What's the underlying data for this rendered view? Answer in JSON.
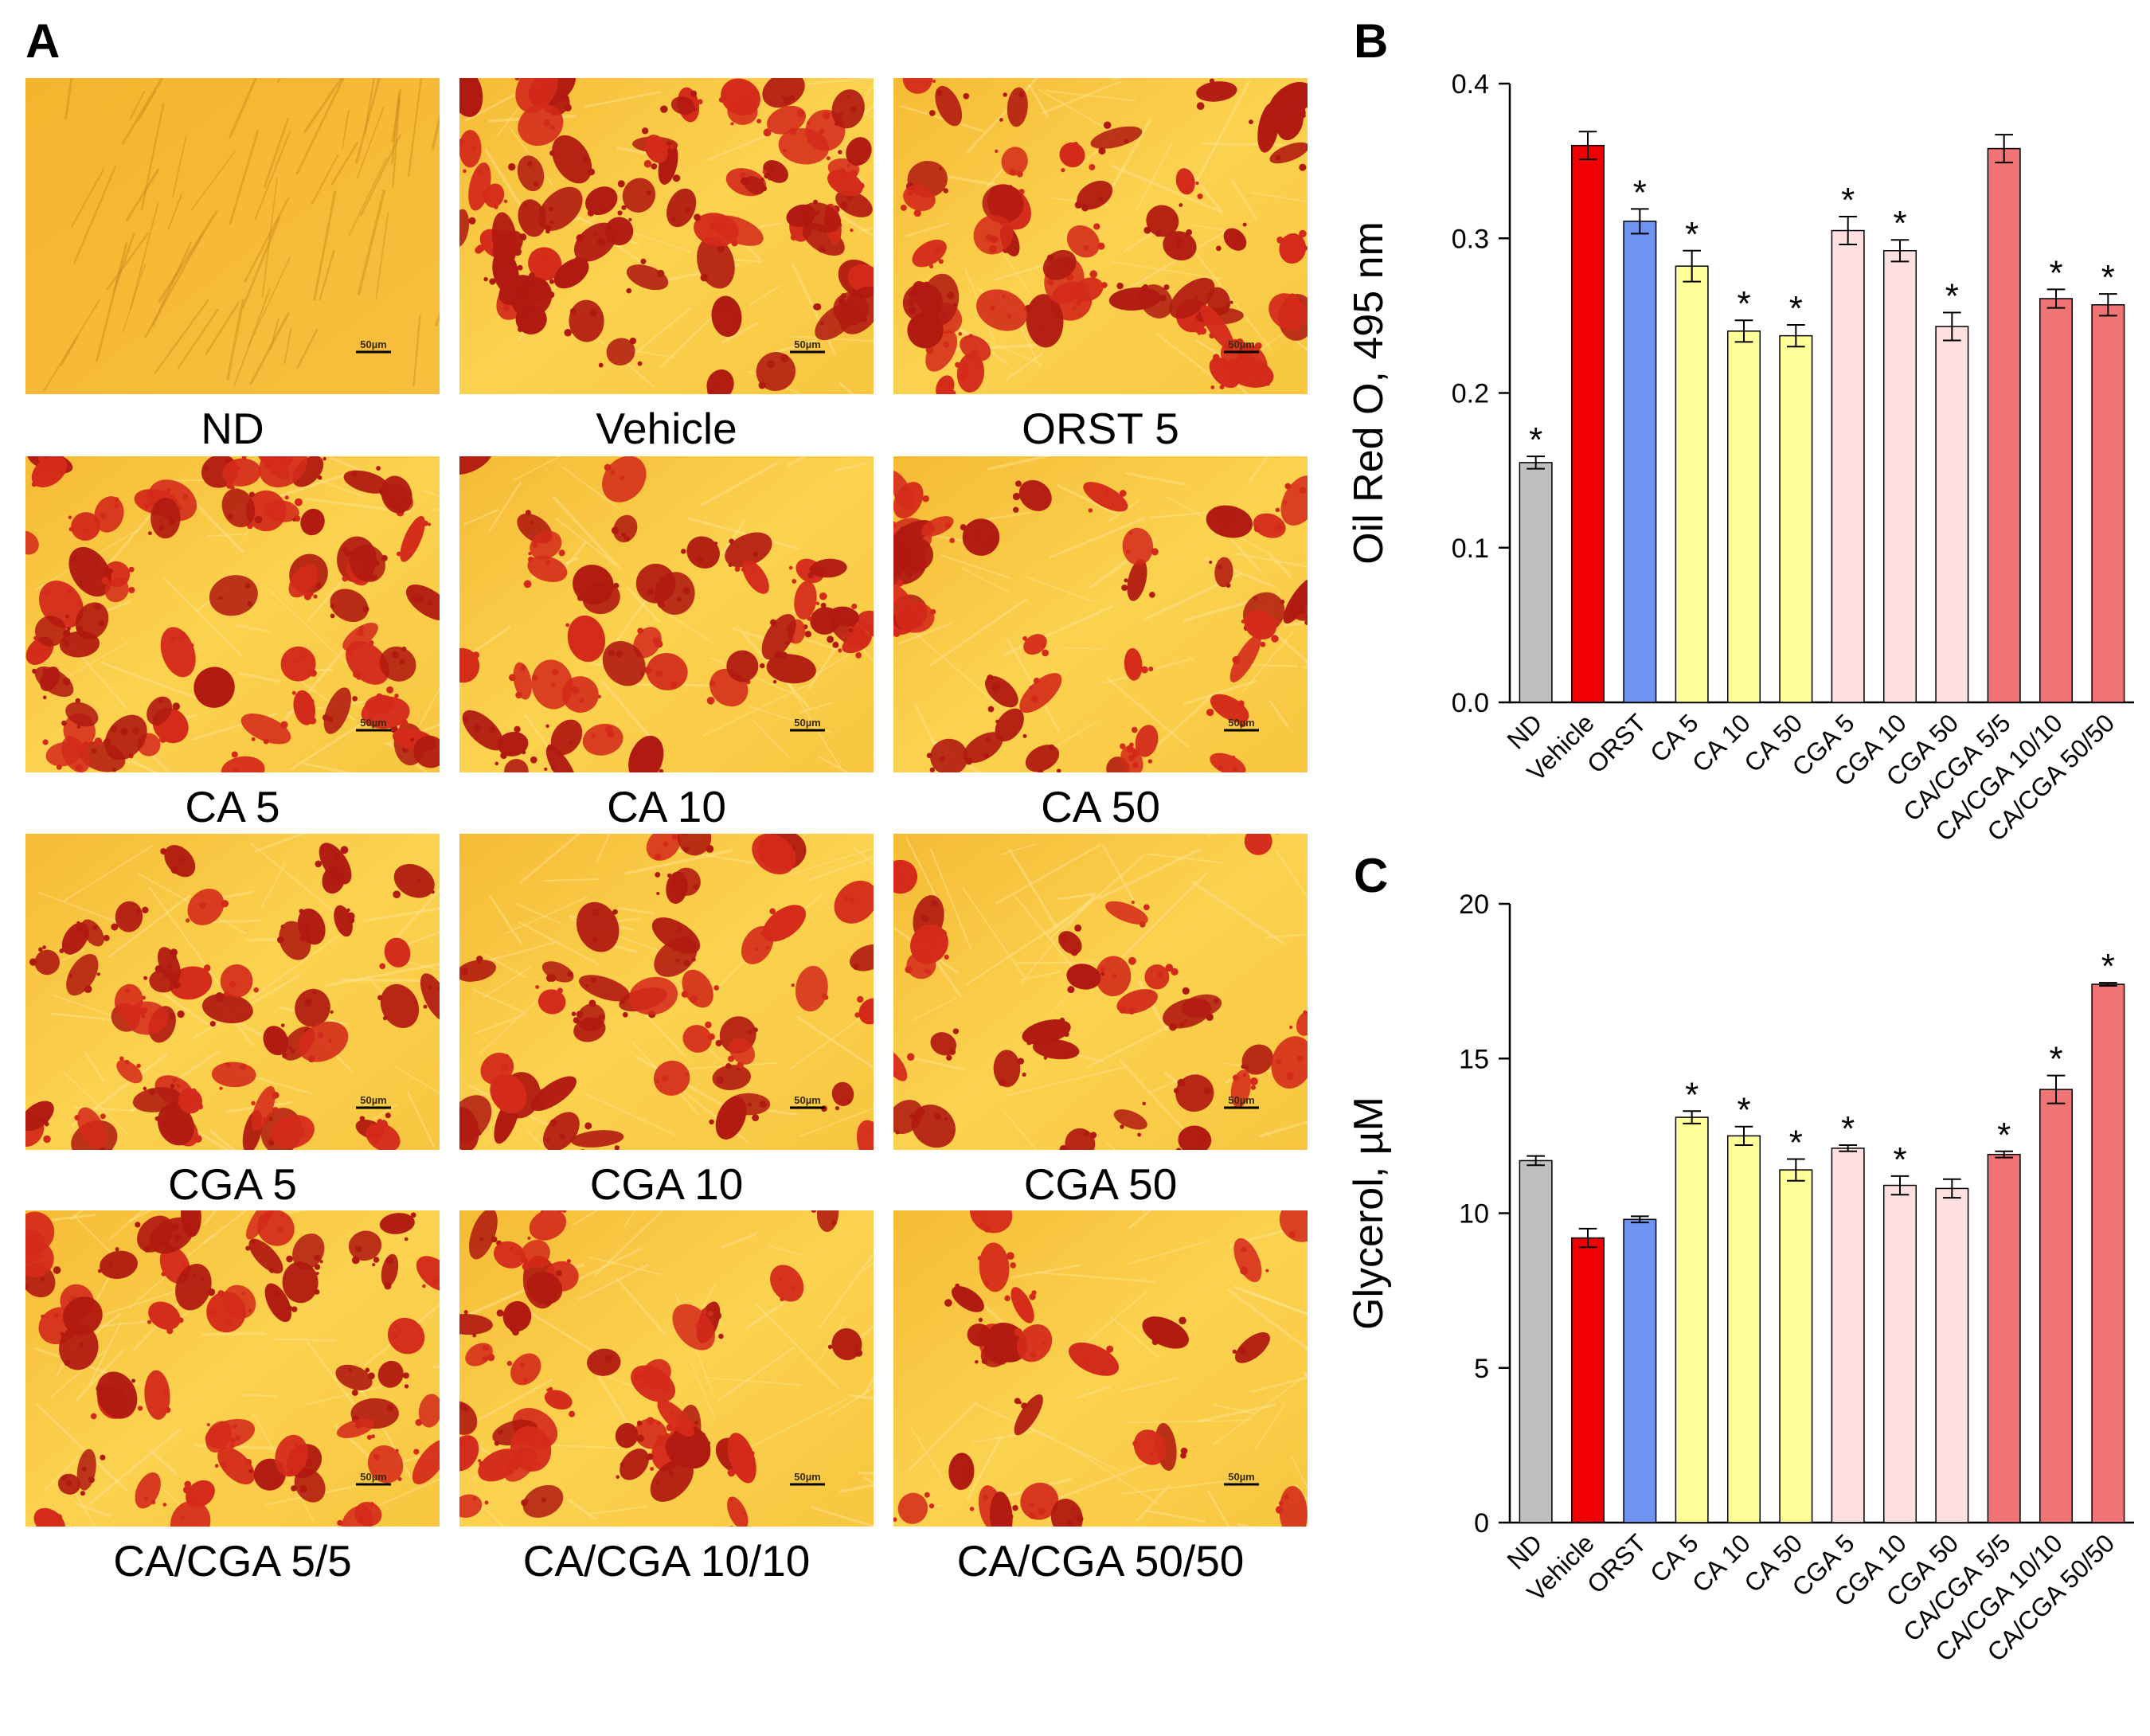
{
  "figure": {
    "panel_labels": {
      "A": "A",
      "B": "B",
      "C": "C"
    },
    "colors": {
      "background": "#f6c23c",
      "background_light": "#ffe27a",
      "stain": "#d42a1a",
      "stain_dark": "#b11a10"
    }
  },
  "micrographs": [
    {
      "label": "ND",
      "stain_density": 0.0,
      "scale_label": "50µm"
    },
    {
      "label": "Vehicle",
      "stain_density": 0.95,
      "scale_label": "50µm"
    },
    {
      "label": "ORST 5",
      "stain_density": 0.75,
      "scale_label": "50µm"
    },
    {
      "label": "CA 5",
      "stain_density": 0.9,
      "scale_label": "50µm"
    },
    {
      "label": "CA 10",
      "stain_density": 0.6,
      "scale_label": "50µm"
    },
    {
      "label": "CA 50",
      "stain_density": 0.55,
      "scale_label": "50µm"
    },
    {
      "label": "CGA 5",
      "stain_density": 0.65,
      "scale_label": "50µm"
    },
    {
      "label": "CGA 10",
      "stain_density": 0.6,
      "scale_label": "50µm"
    },
    {
      "label": "CGA 50",
      "stain_density": 0.4,
      "scale_label": "50µm"
    },
    {
      "label": "CA/CGA 5/5",
      "stain_density": 0.75,
      "scale_label": "50µm"
    },
    {
      "label": "CA/CGA 10/10",
      "stain_density": 0.6,
      "scale_label": "50µm"
    },
    {
      "label": "CA/CGA 50/50",
      "stain_density": 0.35,
      "scale_label": "50µm"
    }
  ],
  "chart_data": [
    {
      "id": "B",
      "type": "bar",
      "title": "",
      "ylabel": "Oil Red O, 495 nm",
      "xlabel": "",
      "ylim": [
        0,
        0.4
      ],
      "yticks": [
        "0.0",
        "0.1",
        "0.2",
        "0.3",
        "0.4"
      ],
      "ytick_values": [
        0,
        0.1,
        0.2,
        0.3,
        0.4
      ],
      "categories": [
        "ND",
        "Vehicle",
        "ORST",
        "CA 5",
        "CA 10",
        "CA 50",
        "CGA 5",
        "CGA 10",
        "CGA 50",
        "CA/CGA 5/5",
        "CA/CGA 10/10",
        "CA/CGA 50/50"
      ],
      "values": [
        0.155,
        0.36,
        0.311,
        0.282,
        0.24,
        0.237,
        0.305,
        0.292,
        0.243,
        0.358,
        0.261,
        0.257
      ],
      "errors": [
        0.004,
        0.009,
        0.008,
        0.01,
        0.007,
        0.007,
        0.009,
        0.007,
        0.009,
        0.009,
        0.006,
        0.007
      ],
      "significant": [
        true,
        false,
        true,
        true,
        true,
        true,
        true,
        true,
        true,
        false,
        true,
        true
      ],
      "star_symbol": "*",
      "bar_colors": [
        "#bfbfbf",
        "#f00000",
        "#6f93f0",
        "#ffff99",
        "#ffff99",
        "#ffff99",
        "#ffe0e0",
        "#ffe0e0",
        "#ffe0e0",
        "#f07474",
        "#f07474",
        "#f07474"
      ]
    },
    {
      "id": "C",
      "type": "bar",
      "title": "",
      "ylabel": "Glycerol, µM",
      "xlabel": "",
      "ylim": [
        0,
        20
      ],
      "yticks": [
        "0",
        "5",
        "10",
        "15",
        "20"
      ],
      "ytick_values": [
        0,
        5,
        10,
        15,
        20
      ],
      "categories": [
        "ND",
        "Vehicle",
        "ORST",
        "CA 5",
        "CA 10",
        "CA 50",
        "CGA 5",
        "CGA 10",
        "CGA 50",
        "CA/CGA 5/5",
        "CA/CGA 10/10",
        "CA/CGA 50/50"
      ],
      "values": [
        11.7,
        9.2,
        9.8,
        13.1,
        12.5,
        11.4,
        12.1,
        10.9,
        10.8,
        11.9,
        14.0,
        17.4
      ],
      "errors": [
        0.15,
        0.3,
        0.1,
        0.2,
        0.3,
        0.35,
        0.1,
        0.3,
        0.3,
        0.1,
        0.45,
        0.05
      ],
      "significant": [
        false,
        false,
        false,
        true,
        true,
        true,
        true,
        true,
        false,
        true,
        true,
        true
      ],
      "star_symbol": "*",
      "bar_colors": [
        "#bfbfbf",
        "#f00000",
        "#6f93f0",
        "#ffff99",
        "#ffff99",
        "#ffff99",
        "#ffe0e0",
        "#ffe0e0",
        "#ffe0e0",
        "#f07474",
        "#f07474",
        "#f07474"
      ]
    }
  ]
}
